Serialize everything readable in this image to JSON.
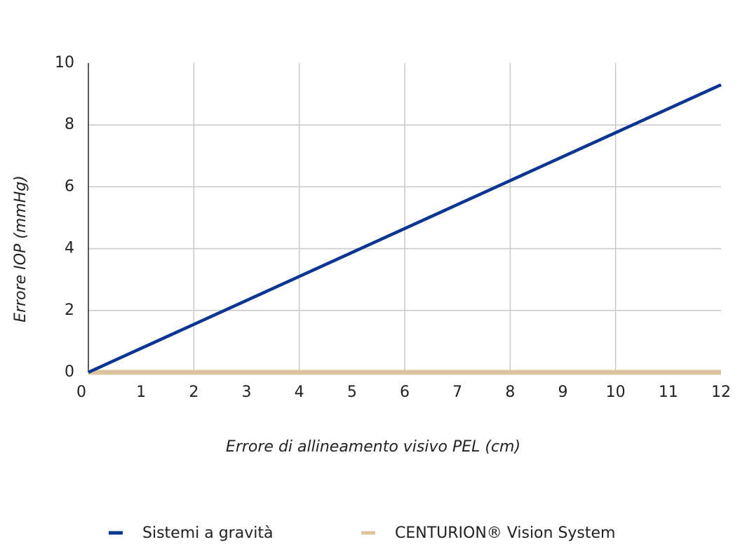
{
  "chart_data": {
    "type": "line",
    "x_label": "Errore di allineamento visivo PEL (cm)",
    "y_label": "Errore IOP (mmHg)",
    "x": [
      0,
      12
    ],
    "series": [
      {
        "name": "Sistemi a gravità",
        "color": "#0a3592",
        "values": [
          0,
          9.3
        ]
      },
      {
        "name": "CENTURION® Vision System",
        "color": "#dcc59e",
        "values": [
          0,
          0
        ]
      }
    ],
    "xlim": [
      0,
      12
    ],
    "xticks": [
      0,
      1,
      2,
      3,
      4,
      5,
      6,
      7,
      8,
      9,
      10,
      11,
      12
    ],
    "ylim": [
      0,
      10
    ],
    "yticks": [
      0,
      2,
      4,
      6,
      8,
      10
    ],
    "grid": true
  }
}
